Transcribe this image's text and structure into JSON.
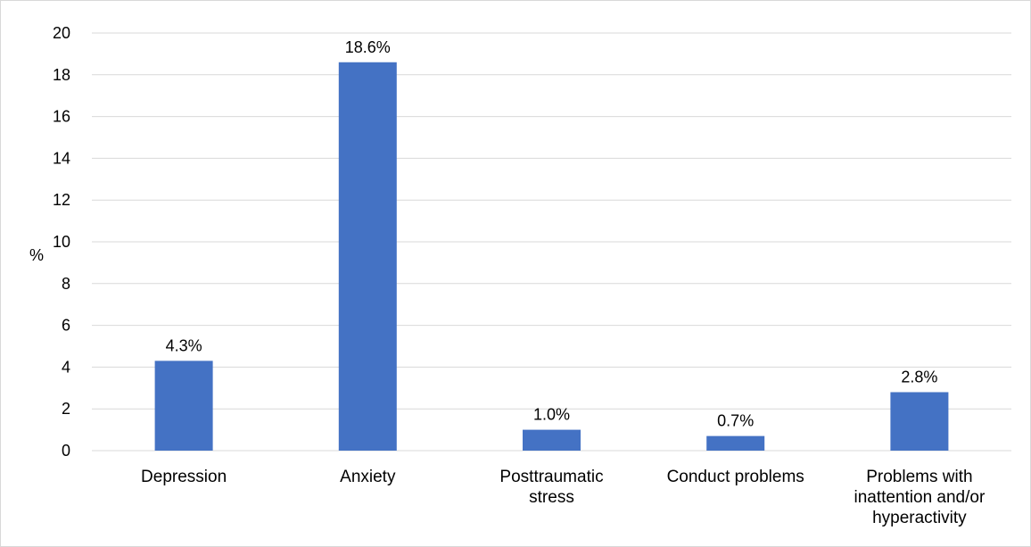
{
  "chart_data": {
    "type": "bar",
    "categories": [
      "Depression",
      "Anxiety",
      "Posttraumatic\nstress",
      "Conduct problems",
      "Problems with\ninattention and/or\nhyperactivity"
    ],
    "values": [
      4.3,
      18.6,
      1.0,
      0.7,
      2.8
    ],
    "data_labels": [
      "4.3%",
      "18.6%",
      "1.0%",
      "0.7%",
      "2.8%"
    ],
    "ylabel": "%",
    "ylim": [
      0,
      20
    ],
    "yticks": [
      "0",
      "2",
      "4",
      "6",
      "8",
      "10",
      "12",
      "14",
      "16",
      "18",
      "20"
    ],
    "grid": true,
    "bar_color": "#4472c4",
    "grid_color": "#d9d9d9"
  }
}
